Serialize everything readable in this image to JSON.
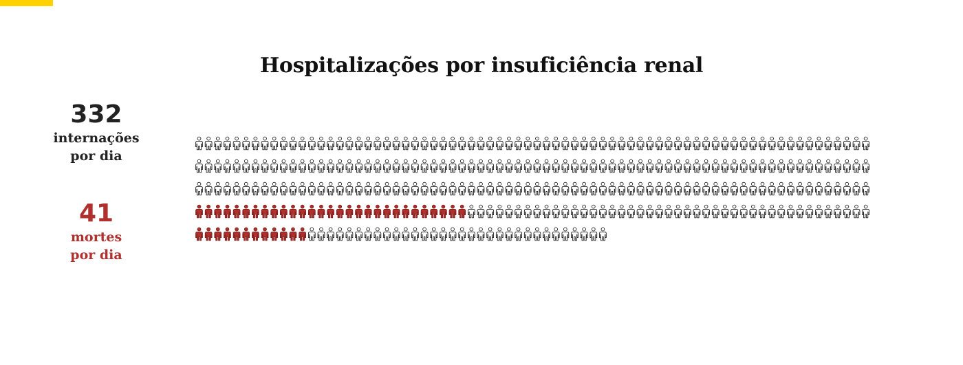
{
  "accent_color": "#ffd100",
  "title": "Hospitalizações por insuficiência renal",
  "stats": {
    "total": {
      "number": "332",
      "label_line1": "internações",
      "label_line2": "por dia",
      "color": "#222222"
    },
    "deaths": {
      "number": "41",
      "label_line1": "mortes",
      "label_line2": "por dia",
      "color": "#b0302e"
    }
  },
  "chart_data": {
    "type": "pictogram",
    "title": "Hospitalizações por insuficiência renal",
    "unit_icon": "person-icon",
    "icons_per_row": 72,
    "series": [
      {
        "name": "internações por dia",
        "value": 332,
        "color": "#ffffff",
        "stroke": "#222222"
      },
      {
        "name": "mortes por dia",
        "value": 41,
        "color": "#b0302e",
        "stroke": "#7a1f1d"
      }
    ],
    "highlight_rows": [
      {
        "row": 4,
        "first_icons": 29
      },
      {
        "row": 5,
        "first_icons": 12
      }
    ]
  }
}
